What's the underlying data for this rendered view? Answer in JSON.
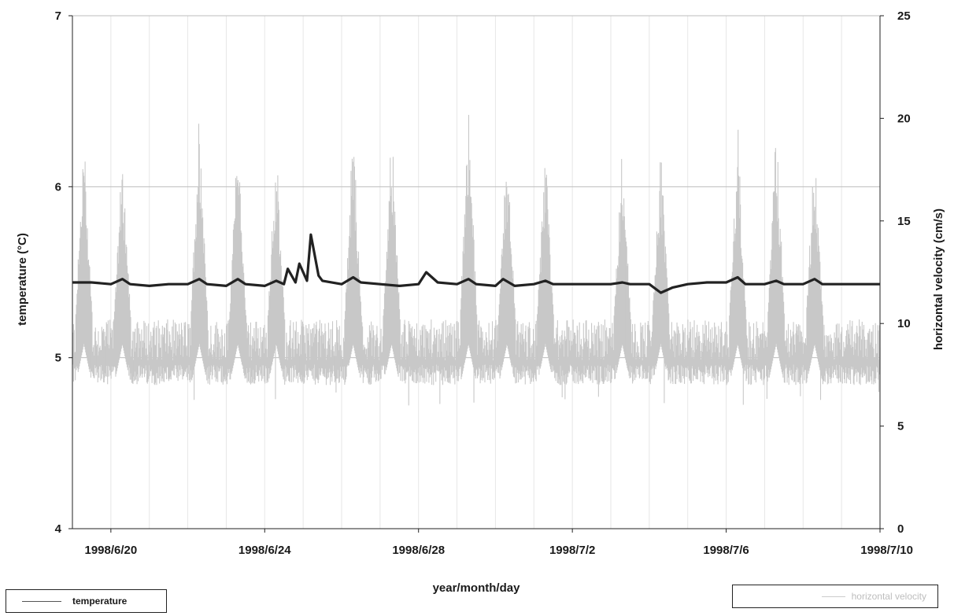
{
  "chart_data": {
    "type": "line",
    "title": "",
    "xlabel": "year/month/day",
    "ylabel_left": "temperature (°C)",
    "ylabel_right": "horizontal velocity (cm/s)",
    "x_range": [
      "1998/6/19",
      "1998/7/10"
    ],
    "x_tick_labels": [
      "1998/6/20",
      "1998/6/24",
      "1998/6/28",
      "1998/7/2",
      "1998/7/6",
      "1998/7/10"
    ],
    "x_tick_values": [
      1,
      5,
      9,
      13,
      17,
      21
    ],
    "y_left": {
      "ylim": [
        4,
        7
      ],
      "ticks": [
        4,
        5,
        6,
        7
      ]
    },
    "y_right": {
      "ylim": [
        0,
        25
      ],
      "ticks": [
        0,
        5,
        10,
        15,
        20,
        25
      ]
    },
    "grid": true,
    "legend_placement": "bottom",
    "series": [
      {
        "name": "temperature",
        "axis": "left",
        "color": "#222222",
        "x": [
          0.0,
          0.5,
          1.0,
          1.3,
          1.5,
          2.0,
          2.5,
          3.0,
          3.3,
          3.5,
          4.0,
          4.3,
          4.5,
          5.0,
          5.3,
          5.5,
          5.6,
          5.8,
          5.9,
          6.1,
          6.2,
          6.4,
          6.5,
          7.0,
          7.3,
          7.5,
          8.0,
          8.5,
          9.0,
          9.2,
          9.5,
          10.0,
          10.3,
          10.5,
          11.0,
          11.2,
          11.5,
          12.0,
          12.3,
          12.5,
          13.0,
          13.5,
          14.0,
          14.3,
          14.5,
          15.0,
          15.3,
          15.6,
          16.0,
          16.5,
          17.0,
          17.3,
          17.5,
          18.0,
          18.3,
          18.5,
          19.0,
          19.3,
          19.5,
          20.0,
          20.5,
          21.0
        ],
        "values": [
          5.44,
          5.44,
          5.43,
          5.46,
          5.43,
          5.42,
          5.43,
          5.43,
          5.46,
          5.43,
          5.42,
          5.46,
          5.43,
          5.42,
          5.45,
          5.43,
          5.52,
          5.44,
          5.55,
          5.45,
          5.72,
          5.48,
          5.45,
          5.43,
          5.47,
          5.44,
          5.43,
          5.42,
          5.43,
          5.5,
          5.44,
          5.43,
          5.46,
          5.43,
          5.42,
          5.46,
          5.42,
          5.43,
          5.45,
          5.43,
          5.43,
          5.43,
          5.43,
          5.44,
          5.43,
          5.43,
          5.38,
          5.41,
          5.43,
          5.44,
          5.44,
          5.47,
          5.43,
          5.43,
          5.45,
          5.43,
          5.43,
          5.46,
          5.43,
          5.43,
          5.43,
          5.43
        ]
      },
      {
        "name": "horizontal velocity",
        "axis": "right",
        "color": "#c8c8c8",
        "baseline_range": [
          7.0,
          10.2
        ],
        "peak_x": [
          0.3,
          1.3,
          3.3,
          4.3,
          5.3,
          7.3,
          8.3,
          10.3,
          11.3,
          12.3,
          14.3,
          15.3,
          17.3,
          18.3,
          19.3
        ],
        "peak_values": [
          19.5,
          18.5,
          21.0,
          19.5,
          19.0,
          20.0,
          20.0,
          21.0,
          19.0,
          18.5,
          19.0,
          18.5,
          20.0,
          20.0,
          19.0
        ],
        "min_value": 5.9
      }
    ]
  }
}
